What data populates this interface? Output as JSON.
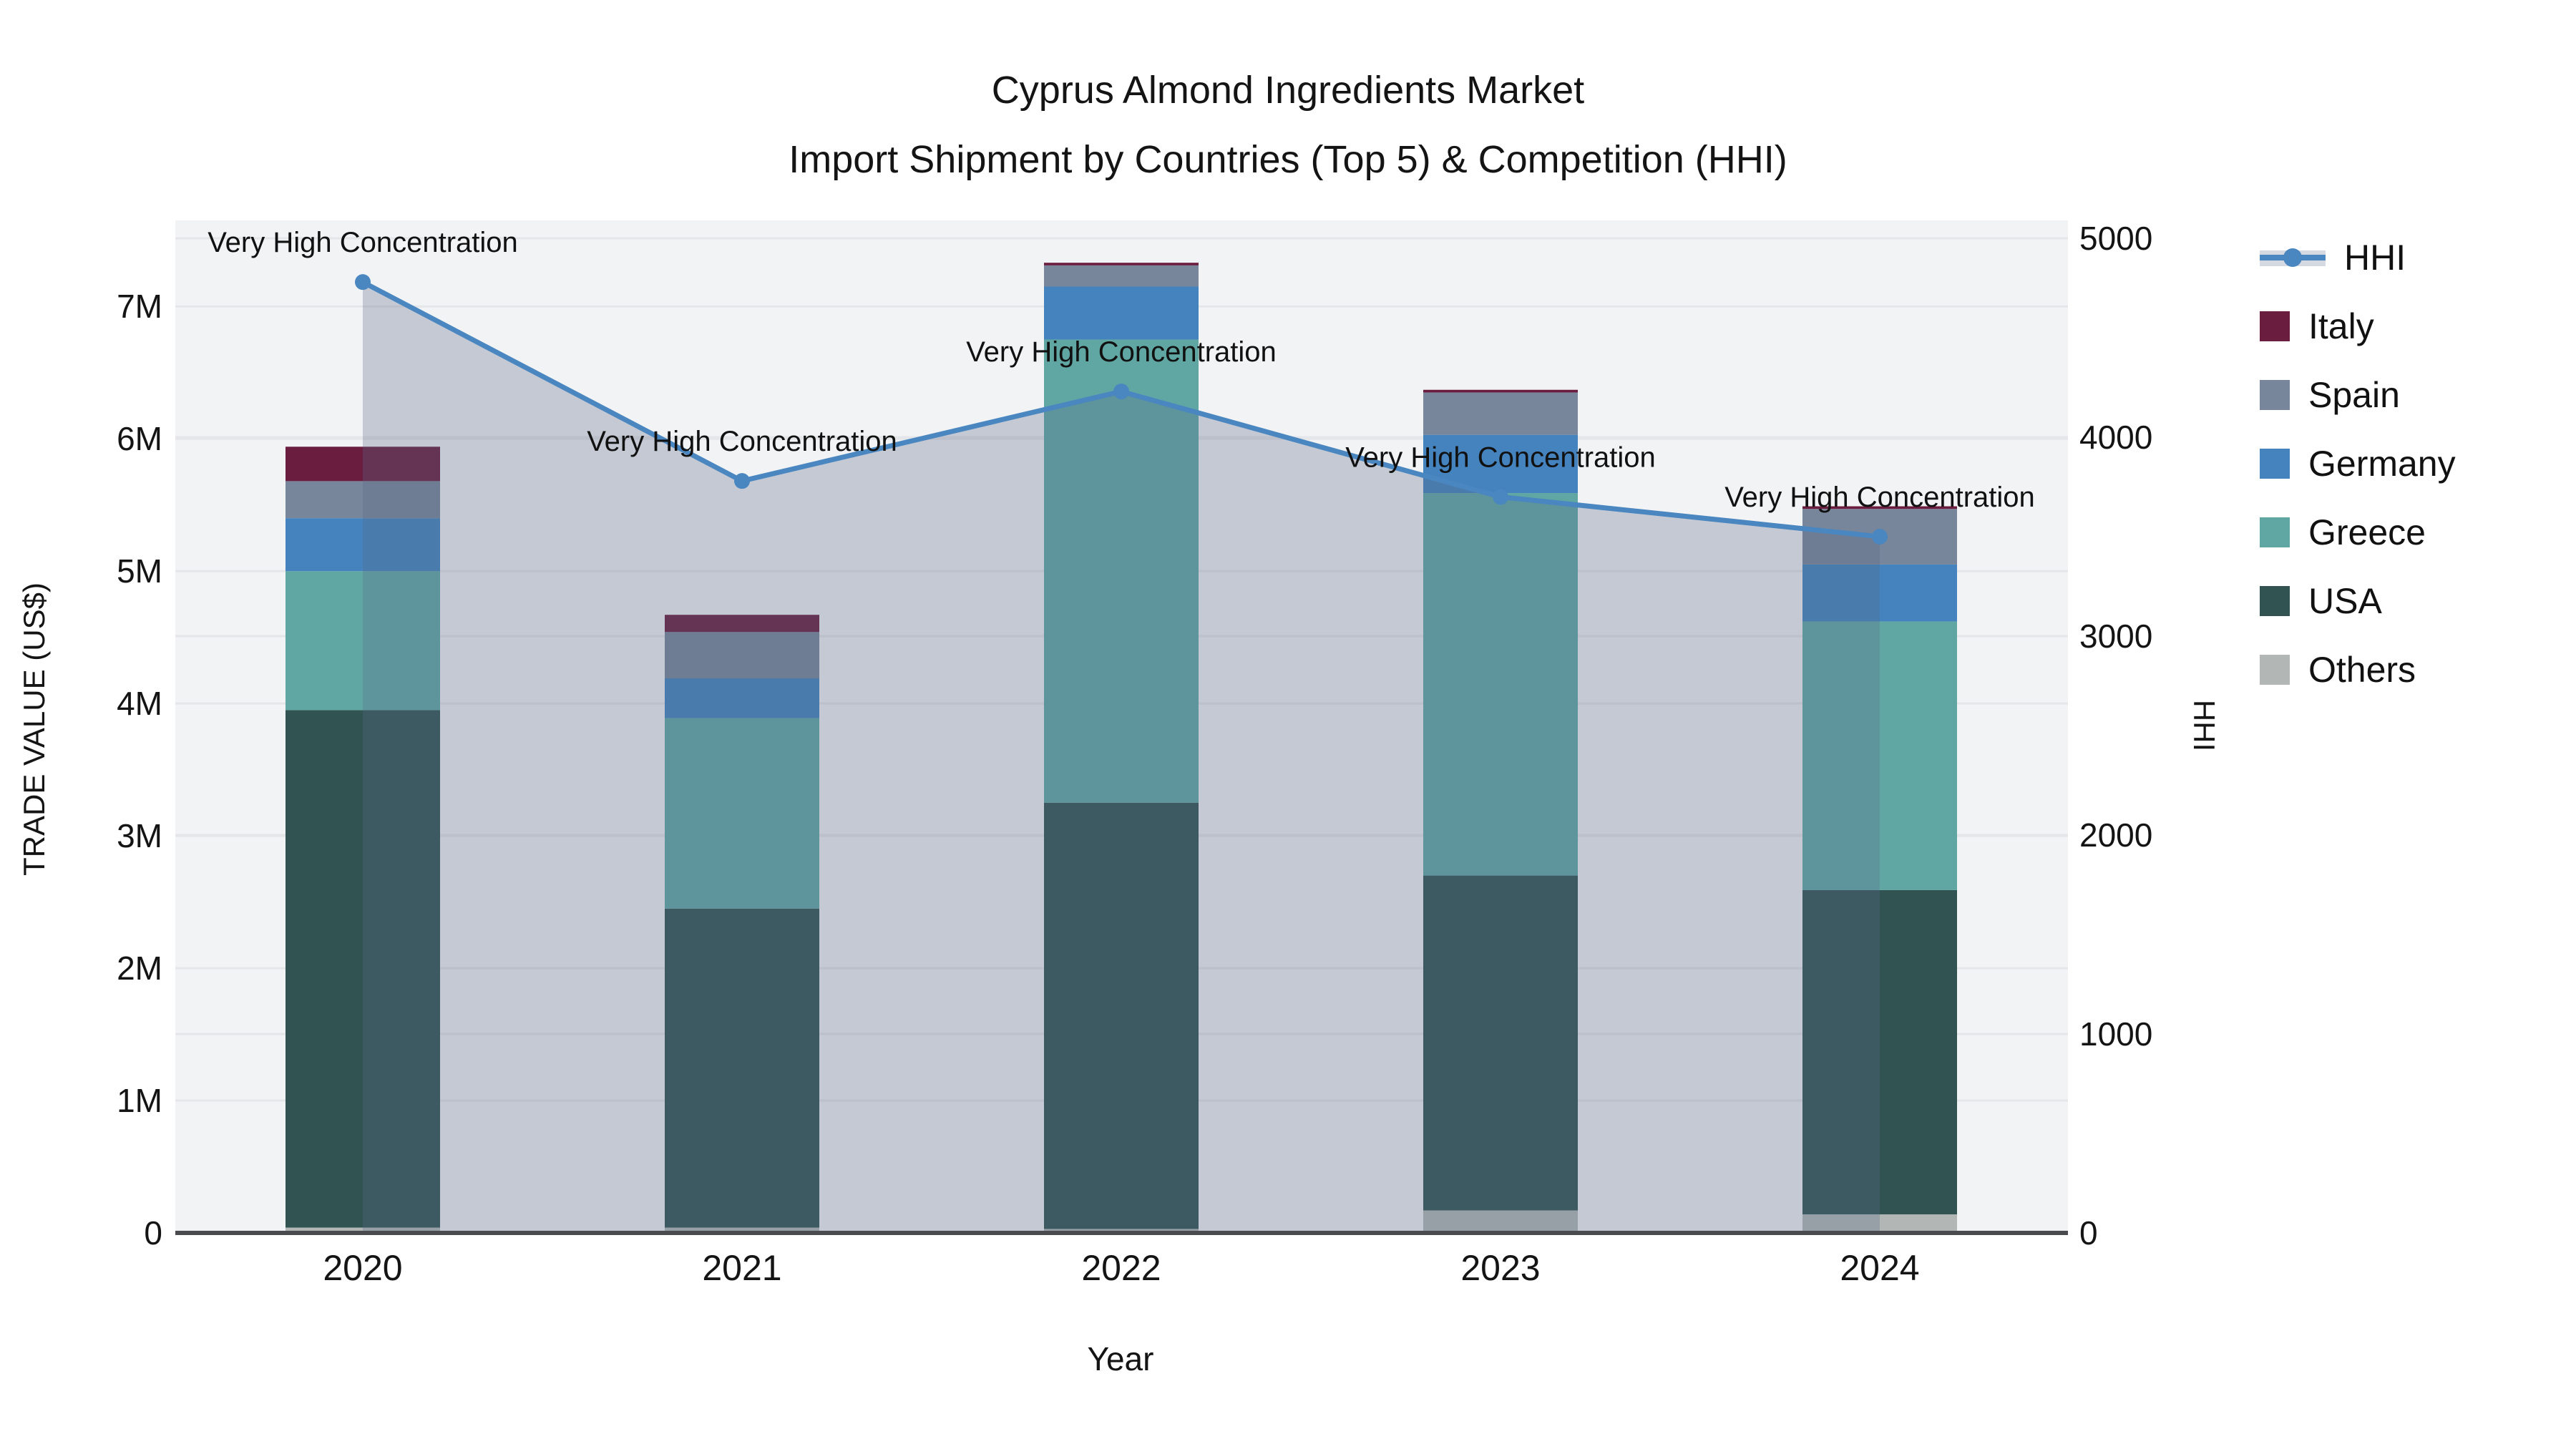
{
  "title": {
    "line1": "Cyprus Almond Ingredients Market",
    "line2": "Import Shipment by Countries (Top 5) & Competition (HHI)"
  },
  "chart_data": {
    "type": "bar",
    "subtype": "stacked-bars-with-line",
    "categories": [
      "2020",
      "2021",
      "2022",
      "2023",
      "2024"
    ],
    "values_unit": "million US$",
    "series": [
      {
        "name": "Others",
        "color": "#b2b6b5",
        "values": [
          0.04,
          0.04,
          0.03,
          0.17,
          0.14
        ]
      },
      {
        "name": "USA",
        "color": "#315452",
        "values": [
          3.91,
          2.41,
          3.22,
          2.53,
          2.45
        ]
      },
      {
        "name": "Greece",
        "color": "#60a7a4",
        "values": [
          1.05,
          1.44,
          3.5,
          2.89,
          2.03
        ]
      },
      {
        "name": "Germany",
        "color": "#4483be",
        "values": [
          0.4,
          0.3,
          0.4,
          0.44,
          0.43
        ]
      },
      {
        "name": "Spain",
        "color": "#77869a",
        "values": [
          0.28,
          0.35,
          0.16,
          0.32,
          0.42
        ]
      },
      {
        "name": "Italy",
        "color": "#6b1d40",
        "values": [
          0.26,
          0.13,
          0.02,
          0.02,
          0.02
        ]
      }
    ],
    "line": {
      "name": "HHI",
      "color": "#4a86c0",
      "area_fill": "rgba(90,105,135,0.30)",
      "values": [
        4780,
        3780,
        4230,
        3700,
        3500
      ]
    },
    "annotations": [
      {
        "x": "2020",
        "text": "Very High Concentration"
      },
      {
        "x": "2021",
        "text": "Very High Concentration"
      },
      {
        "x": "2022",
        "text": "Very High Concentration"
      },
      {
        "x": "2023",
        "text": "Very High Concentration"
      },
      {
        "x": "2024",
        "text": "Very High Concentration"
      }
    ],
    "x": {
      "label": "Year"
    },
    "y_left": {
      "label": "TRADE VALUE (US$)",
      "ticks": [
        "0",
        "1M",
        "2M",
        "3M",
        "4M",
        "5M",
        "6M",
        "7M"
      ],
      "tick_values": [
        0,
        1,
        2,
        3,
        4,
        5,
        6,
        7
      ],
      "max": 7.65
    },
    "y_right": {
      "label": "HHI",
      "ticks": [
        "0",
        "1000",
        "2000",
        "3000",
        "4000",
        "5000"
      ],
      "tick_values": [
        0,
        1000,
        2000,
        3000,
        4000,
        5000
      ],
      "max": 5090
    },
    "grid": true,
    "legend_position": "right",
    "plot_background": "#f2f3f4",
    "gridline_color": "#e5e6e9",
    "axisline_color": "#4a4b4f",
    "text_color": "#141414"
  },
  "legend": {
    "items": [
      {
        "label": "HHI",
        "type": "line",
        "color": "#4a86c0"
      },
      {
        "label": "Italy",
        "type": "square",
        "color": "#6b1d40"
      },
      {
        "label": "Spain",
        "type": "square",
        "color": "#77869a"
      },
      {
        "label": "Germany",
        "type": "square",
        "color": "#4483be"
      },
      {
        "label": "Greece",
        "type": "square",
        "color": "#60a7a4"
      },
      {
        "label": "USA",
        "type": "square",
        "color": "#315452"
      },
      {
        "label": "Others",
        "type": "square",
        "color": "#b2b6b5"
      }
    ]
  }
}
